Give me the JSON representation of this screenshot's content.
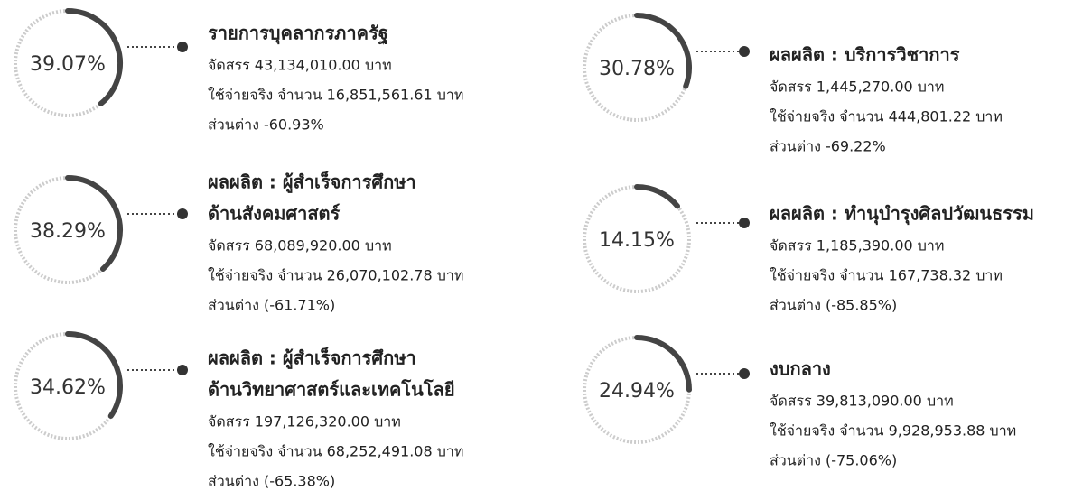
{
  "items": [
    {
      "percent": 39.07,
      "percent_label": "39.07%",
      "title_lines": [
        "รายการบุคลากรภาครัฐ"
      ],
      "lines": [
        "จัดสรร 43,134,010.00 บาท",
        "ใช้จ่ายจริง จำนวน 16,851,561.61 บาท",
        "ส่วนต่าง -60.93%"
      ]
    },
    {
      "percent": 38.29,
      "percent_label": "38.29%",
      "title_lines": [
        "ผลผลิต : ผู้สำเร็จการศึกษา",
        "ด้านสังคมศาสตร์"
      ],
      "lines": [
        "จัดสรร 68,089,920.00 บาท",
        "ใช้จ่ายจริง จำนวน 26,070,102.78 บาท",
        "ส่วนต่าง (-61.71%)"
      ]
    },
    {
      "percent": 34.62,
      "percent_label": "34.62%",
      "title_lines": [
        "ผลผลิต : ผู้สำเร็จการศึกษา",
        "ด้านวิทยาศาสตร์และเทคโนโลยี"
      ],
      "lines": [
        "จัดสรร 197,126,320.00 บาท",
        "ใช้จ่ายจริง จำนวน 68,252,491.08 บาท",
        "ส่วนต่าง (-65.38%)"
      ]
    },
    {
      "percent": 30.78,
      "percent_label": "30.78%",
      "title_lines": [
        "ผลผลิต : บริการวิชาการ"
      ],
      "lines": [
        "จัดสรร 1,445,270.00 บาท",
        "ใช้จ่ายจริง จำนวน 444,801.22 บาท",
        "ส่วนต่าง -69.22%"
      ]
    },
    {
      "percent": 14.15,
      "percent_label": "14.15%",
      "title_lines": [
        "ผลผลิต : ทำนุบำรุงศิลปวัฒนธรรม"
      ],
      "lines": [
        "จัดสรร 1,185,390.00 บาท",
        "ใช้จ่ายจริง จำนวน 167,738.32 บาท",
        "ส่วนต่าง (-85.85%)"
      ]
    },
    {
      "percent": 24.94,
      "percent_label": "24.94%",
      "title_lines": [
        "งบกลาง"
      ],
      "lines": [
        "จัดสรร 39,813,090.00 บาท",
        "ใช้จ่ายจริง จำนวน 9,928,953.88 บาท",
        "ส่วนต่าง (-75.06%)"
      ]
    }
  ]
}
